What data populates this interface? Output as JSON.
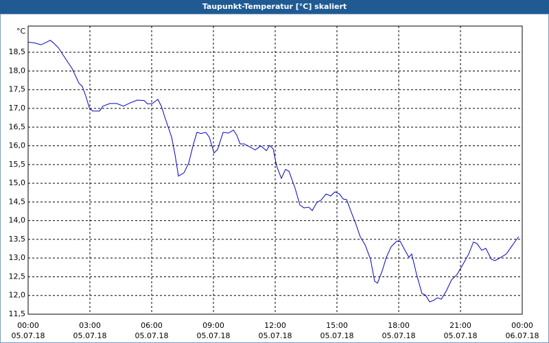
{
  "chart_data": {
    "type": "line",
    "title": "Taupunkt-Temperatur [°C] skaliert",
    "y_unit": "°C",
    "color": "#0000c0",
    "grid": true,
    "x": [
      0,
      0.3,
      0.63,
      0.9,
      1.07,
      1.23,
      1.47,
      1.8,
      2.13,
      2.47,
      2.63,
      2.8,
      2.97,
      3.13,
      3.47,
      3.63,
      3.97,
      4.3,
      4.63,
      4.97,
      5.3,
      5.63,
      5.8,
      6.03,
      6.3,
      6.47,
      6.63,
      6.97,
      7.13,
      7.3,
      7.57,
      7.8,
      8.03,
      8.2,
      8.4,
      8.63,
      8.8,
      9.03,
      9.2,
      9.47,
      9.73,
      9.97,
      10.13,
      10.3,
      10.5,
      10.8,
      11.03,
      11.3,
      11.57,
      11.73,
      11.9,
      12.07,
      12.3,
      12.5,
      12.67,
      12.97,
      13.2,
      13.4,
      13.63,
      13.8,
      14.03,
      14.23,
      14.47,
      14.7,
      14.9,
      15.13,
      15.3,
      15.47,
      15.7,
      15.9,
      16.13,
      16.37,
      16.63,
      16.83,
      16.97,
      17.2,
      17.4,
      17.63,
      17.9,
      18.07,
      18.3,
      18.5,
      18.63,
      18.87,
      19.13,
      19.3,
      19.5,
      19.7,
      19.87,
      20.07,
      20.3,
      20.57,
      20.83,
      21.13,
      21.4,
      21.63,
      21.8,
      22.03,
      22.23,
      22.5,
      22.67,
      22.97,
      23.23,
      23.47,
      23.7,
      23.83
    ],
    "values": [
      18.77,
      18.75,
      18.7,
      18.77,
      18.82,
      18.75,
      18.62,
      18.34,
      18.07,
      17.67,
      17.59,
      17.33,
      17.02,
      16.93,
      16.93,
      17.06,
      17.13,
      17.13,
      17.06,
      17.15,
      17.22,
      17.21,
      17.12,
      17.13,
      17.24,
      17.06,
      16.78,
      16.23,
      15.78,
      15.19,
      15.28,
      15.54,
      16.05,
      16.36,
      16.33,
      16.36,
      16.23,
      15.81,
      15.9,
      16.36,
      16.34,
      16.42,
      16.29,
      16.05,
      16.05,
      15.96,
      15.89,
      16.0,
      15.87,
      16.01,
      15.92,
      15.46,
      15.13,
      15.37,
      15.32,
      14.86,
      14.42,
      14.34,
      14.36,
      14.27,
      14.49,
      14.55,
      14.71,
      14.66,
      14.77,
      14.71,
      14.58,
      14.56,
      14.22,
      13.94,
      13.57,
      13.35,
      12.97,
      12.38,
      12.33,
      12.66,
      13.02,
      13.3,
      13.45,
      13.45,
      13.21,
      13.02,
      13.11,
      12.56,
      12.05,
      12.01,
      11.83,
      11.87,
      11.94,
      11.9,
      12.11,
      12.42,
      12.56,
      12.84,
      13.11,
      13.43,
      13.39,
      13.21,
      13.26,
      12.97,
      12.93,
      13.02,
      13.11,
      13.3,
      13.48,
      13.57
    ],
    "xlim": [
      0,
      24
    ],
    "xticks": [
      {
        "value": 0,
        "label": "00:00"
      },
      {
        "value": 3,
        "label": "03:00"
      },
      {
        "value": 6,
        "label": "06:00"
      },
      {
        "value": 9,
        "label": "09:00"
      },
      {
        "value": 12,
        "label": "12:00"
      },
      {
        "value": 15,
        "label": "15:00"
      },
      {
        "value": 18,
        "label": "18:00"
      },
      {
        "value": 21,
        "label": "21:00"
      },
      {
        "value": 24,
        "label": "00:00"
      }
    ],
    "x_date_labels": [
      "05.07.18",
      "05.07.18",
      "05.07.18",
      "05.07.18",
      "05.07.18",
      "05.07.18",
      "05.07.18",
      "05.07.18",
      "06.07.18"
    ],
    "ylim": [
      11.5,
      19.2
    ],
    "yticks": [
      {
        "value": 11.5,
        "label": "11,5"
      },
      {
        "value": 12,
        "label": "12,0"
      },
      {
        "value": 12.5,
        "label": "12,5"
      },
      {
        "value": 13,
        "label": "13,0"
      },
      {
        "value": 13.5,
        "label": "13,5"
      },
      {
        "value": 14,
        "label": "14,0"
      },
      {
        "value": 14.5,
        "label": "14,5"
      },
      {
        "value": 15,
        "label": "15,0"
      },
      {
        "value": 15.5,
        "label": "15,5"
      },
      {
        "value": 16,
        "label": "16,0"
      },
      {
        "value": 16.5,
        "label": "16,5"
      },
      {
        "value": 17,
        "label": "17,0"
      },
      {
        "value": 17.5,
        "label": "17,5"
      },
      {
        "value": 18,
        "label": "18,0"
      },
      {
        "value": 18.5,
        "label": "18,5"
      }
    ]
  }
}
